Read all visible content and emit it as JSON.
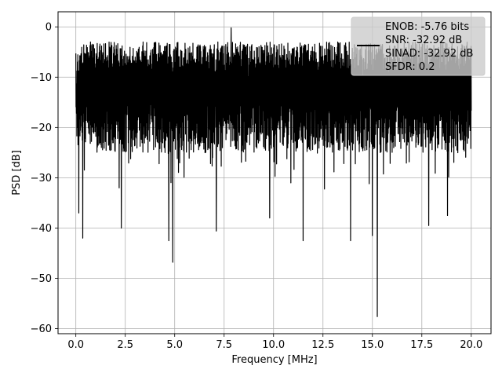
{
  "chart_data": {
    "type": "line",
    "title": "",
    "xlabel": "Frequency [MHz]",
    "ylabel": "PSD [dB]",
    "xlim": [
      -0.9,
      21.0
    ],
    "ylim": [
      -61.0,
      3.0
    ],
    "x_ticks": [
      0.0,
      2.5,
      5.0,
      7.5,
      10.0,
      12.5,
      15.0,
      17.5,
      20.0
    ],
    "x_tick_labels": [
      "0.0",
      "2.5",
      "5.0",
      "7.5",
      "10.0",
      "12.5",
      "15.0",
      "17.5",
      "20.0"
    ],
    "y_ticks": [
      0,
      -10,
      -20,
      -30,
      -40,
      -50,
      -60
    ],
    "y_tick_labels": [
      "0",
      "−10",
      "−20",
      "−30",
      "−40",
      "−50",
      "−60"
    ],
    "grid": true,
    "legend_position": "top-right",
    "legend_lines": [
      "ENOB: -5.76 bits",
      "SNR: -32.92 dB",
      "SINAD: -32.92 dB",
      "SFDR: 0.2"
    ],
    "series": [
      {
        "color": "#000000",
        "x_range": [
          0.0,
          20.0
        ],
        "points": 2000,
        "typical_range": [
          -25.0,
          -3.0
        ],
        "notable_points": [
          {
            "x": 0.02,
            "y": -14.5
          },
          {
            "x": 0.15,
            "y": -37.0
          },
          {
            "x": 0.35,
            "y": -42.0
          },
          {
            "x": 2.3,
            "y": -40.0
          },
          {
            "x": 4.7,
            "y": -42.5
          },
          {
            "x": 4.9,
            "y": -46.8
          },
          {
            "x": 7.1,
            "y": -40.6
          },
          {
            "x": 7.85,
            "y": -0.2
          },
          {
            "x": 9.8,
            "y": -38.0
          },
          {
            "x": 11.5,
            "y": -42.5
          },
          {
            "x": 13.9,
            "y": -42.5
          },
          {
            "x": 15.0,
            "y": -41.5
          },
          {
            "x": 15.25,
            "y": -57.6
          },
          {
            "x": 17.85,
            "y": -39.5
          },
          {
            "x": 18.8,
            "y": -37.5
          }
        ]
      }
    ]
  }
}
